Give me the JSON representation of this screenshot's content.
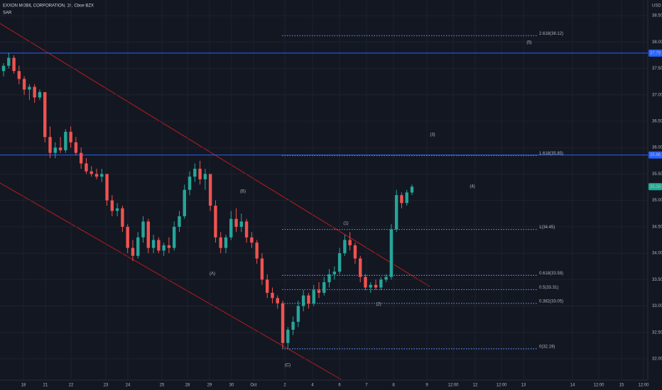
{
  "chart_data": {
    "type": "candlestick",
    "title": "EXXON MOBIL CORPORATION, 1h, Cboe BZX",
    "indicator": "SAR",
    "currency": "USD",
    "up_color": "#26a69a",
    "down_color": "#ef5350",
    "ylim": [
      31.8,
      38.7
    ],
    "yticks": [
      {
        "value": 32,
        "label": "32.00"
      },
      {
        "value": 32.5,
        "label": "32.50"
      },
      {
        "value": 33,
        "label": "33.00"
      },
      {
        "value": 33.5,
        "label": "33.50"
      },
      {
        "value": 34,
        "label": "34.00"
      },
      {
        "value": 34.5,
        "label": "34.50"
      },
      {
        "value": 35,
        "label": "35.00"
      },
      {
        "value": 35.5,
        "label": "35.50"
      },
      {
        "value": 36,
        "label": "36.00"
      },
      {
        "value": 36.5,
        "label": "36.50"
      },
      {
        "value": 37,
        "label": "37.00"
      },
      {
        "value": 37.5,
        "label": "37.50"
      },
      {
        "value": 38,
        "label": "38.00"
      },
      {
        "value": 38.5,
        "label": "38.50"
      }
    ],
    "xticks": [
      "18",
      "21",
      "22",
      "23",
      "24",
      "25",
      "28",
      "29",
      "30",
      "Oct",
      "2",
      "4",
      "6",
      "7",
      "8",
      "9",
      "12:00",
      "12",
      "12:00",
      "13",
      "14",
      "12:00",
      "15",
      "12:00"
    ],
    "grid": true,
    "ohlc": [
      [
        37.45,
        37.6,
        37.35,
        37.55
      ],
      [
        37.55,
        37.8,
        37.5,
        37.7
      ],
      [
        37.7,
        37.75,
        37.4,
        37.45
      ],
      [
        37.45,
        37.55,
        37.2,
        37.3
      ],
      [
        37.3,
        37.35,
        37.0,
        37.1
      ],
      [
        37.1,
        37.2,
        36.9,
        37.15
      ],
      [
        37.15,
        37.2,
        36.85,
        36.95
      ],
      [
        36.95,
        37.1,
        36.9,
        37.05
      ],
      [
        37.05,
        37.05,
        36.1,
        36.2
      ],
      [
        36.2,
        36.4,
        35.8,
        35.9
      ],
      [
        35.9,
        36.1,
        35.8,
        36.0
      ],
      [
        36.0,
        36.2,
        35.9,
        35.95
      ],
      [
        35.95,
        36.35,
        35.9,
        36.3
      ],
      [
        36.3,
        36.4,
        36.0,
        36.1
      ],
      [
        36.1,
        36.2,
        35.85,
        35.9
      ],
      [
        35.9,
        36.0,
        35.6,
        35.7
      ],
      [
        35.7,
        35.8,
        35.5,
        35.55
      ],
      [
        35.55,
        35.65,
        35.45,
        35.5
      ],
      [
        35.5,
        35.6,
        35.4,
        35.45
      ],
      [
        35.45,
        35.6,
        35.35,
        35.5
      ],
      [
        35.5,
        35.5,
        34.9,
        35.0
      ],
      [
        35.0,
        35.1,
        34.7,
        34.8
      ],
      [
        34.8,
        34.95,
        34.7,
        34.85
      ],
      [
        34.85,
        34.9,
        34.4,
        34.5
      ],
      [
        34.5,
        34.55,
        34.0,
        34.1
      ],
      [
        34.1,
        34.25,
        33.85,
        33.95
      ],
      [
        33.95,
        34.4,
        33.9,
        34.3
      ],
      [
        34.3,
        34.7,
        34.2,
        34.6
      ],
      [
        34.6,
        34.65,
        34.0,
        34.1
      ],
      [
        34.1,
        34.35,
        34.0,
        34.25
      ],
      [
        34.25,
        34.3,
        34.0,
        34.05
      ],
      [
        34.05,
        34.2,
        33.95,
        34.15
      ],
      [
        34.15,
        34.3,
        34.0,
        34.1
      ],
      [
        34.1,
        34.6,
        34.05,
        34.5
      ],
      [
        34.5,
        34.8,
        34.4,
        34.7
      ],
      [
        34.7,
        35.3,
        34.65,
        35.2
      ],
      [
        35.2,
        35.55,
        35.1,
        35.45
      ],
      [
        35.45,
        35.7,
        35.35,
        35.6
      ],
      [
        35.6,
        35.75,
        35.3,
        35.4
      ],
      [
        35.4,
        35.6,
        35.2,
        35.5
      ],
      [
        35.5,
        35.5,
        34.8,
        34.9
      ],
      [
        34.9,
        35.0,
        34.2,
        34.3
      ],
      [
        34.3,
        34.4,
        34.0,
        34.1
      ],
      [
        34.1,
        34.35,
        34.0,
        34.3
      ],
      [
        34.3,
        34.8,
        34.25,
        34.65
      ],
      [
        34.65,
        34.85,
        34.4,
        34.5
      ],
      [
        34.5,
        34.75,
        34.4,
        34.6
      ],
      [
        34.6,
        34.65,
        34.2,
        34.3
      ],
      [
        34.3,
        34.4,
        34.1,
        34.2
      ],
      [
        34.2,
        34.25,
        33.8,
        33.9
      ],
      [
        33.9,
        34.0,
        33.4,
        33.5
      ],
      [
        33.5,
        33.6,
        33.15,
        33.25
      ],
      [
        33.25,
        33.35,
        33.05,
        33.15
      ],
      [
        33.15,
        33.2,
        32.95,
        33.05
      ],
      [
        33.05,
        33.1,
        32.2,
        32.3
      ],
      [
        32.3,
        32.6,
        32.2,
        32.55
      ],
      [
        32.55,
        32.8,
        32.45,
        32.7
      ],
      [
        32.7,
        33.1,
        32.6,
        33.0
      ],
      [
        33.0,
        33.3,
        32.9,
        33.2
      ],
      [
        33.2,
        33.25,
        32.95,
        33.05
      ],
      [
        33.05,
        33.4,
        33.0,
        33.3
      ],
      [
        33.3,
        33.45,
        33.15,
        33.25
      ],
      [
        33.25,
        33.55,
        33.2,
        33.45
      ],
      [
        33.45,
        33.7,
        33.35,
        33.6
      ],
      [
        33.6,
        33.75,
        33.5,
        33.65
      ],
      [
        33.65,
        34.1,
        33.6,
        34.0
      ],
      [
        34.0,
        34.35,
        33.95,
        34.25
      ],
      [
        34.25,
        34.4,
        34.05,
        34.15
      ],
      [
        34.15,
        34.2,
        33.8,
        33.9
      ],
      [
        33.9,
        33.95,
        33.45,
        33.55
      ],
      [
        33.55,
        33.6,
        33.3,
        33.35
      ],
      [
        33.35,
        33.45,
        33.25,
        33.4
      ],
      [
        33.4,
        33.5,
        33.3,
        33.35
      ],
      [
        33.35,
        33.55,
        33.3,
        33.5
      ],
      [
        33.5,
        33.6,
        33.45,
        33.55
      ],
      [
        33.55,
        34.55,
        33.5,
        34.45
      ],
      [
        34.45,
        35.2,
        34.4,
        35.1
      ],
      [
        35.1,
        35.15,
        34.85,
        34.95
      ],
      [
        34.95,
        35.2,
        34.9,
        35.15
      ],
      [
        35.15,
        35.3,
        35.1,
        35.26
      ]
    ],
    "levels": [
      {
        "value": 38.12,
        "label": "2.618(38.12)"
      },
      {
        "value": 35.85,
        "label": "1.618(35.85)"
      },
      {
        "value": 34.45,
        "label": "1(34.45)"
      },
      {
        "value": 33.58,
        "label": "0.618(33.58)"
      },
      {
        "value": 33.31,
        "label": "0.5(33.31)"
      },
      {
        "value": 33.05,
        "label": "0.382(33.05)"
      },
      {
        "value": 32.19,
        "label": "0(32.19)"
      }
    ],
    "level_color": "#5b8def",
    "price_tags": [
      {
        "value": 37.79,
        "label": "37.79",
        "color": "#2962ff",
        "line": true
      },
      {
        "value": 35.86,
        "label": "35.86",
        "color": "#2962ff",
        "line": true
      },
      {
        "value": 35.26,
        "label": "35.26",
        "color": "#22ab94",
        "line": false
      }
    ],
    "waves": [
      {
        "label": "(1)",
        "color": "#f7c948"
      },
      {
        "label": "(2)",
        "color": "#f7c948"
      },
      {
        "label": "(3)",
        "color": "#f7c948"
      },
      {
        "label": "(4)",
        "color": "#f7c948"
      },
      {
        "label": "(5)",
        "color": "#f7c948"
      },
      {
        "label": "(A)",
        "color": "#5b8def"
      },
      {
        "label": "(B)",
        "color": "#5b8def"
      },
      {
        "label": "(C)",
        "color": "#5b8def"
      }
    ]
  }
}
